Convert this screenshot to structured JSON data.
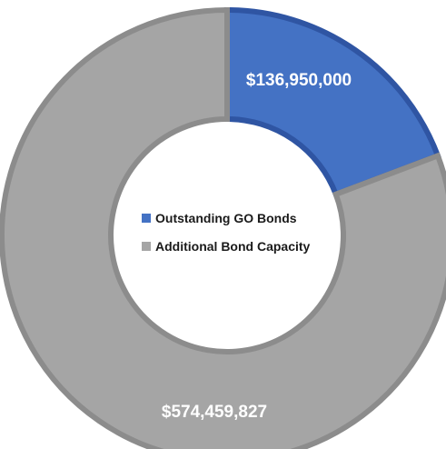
{
  "chart_data": {
    "type": "pie",
    "variant": "donut",
    "title": "",
    "categories": [
      "Outstanding GO Bonds",
      "Additional Bond Capacity"
    ],
    "values": [
      136950000,
      574459827
    ],
    "data_labels": [
      "$136,950,000",
      "$574,459,827"
    ],
    "colors": [
      "#4472C4",
      "#A5A5A5"
    ],
    "border_colors": [
      "#2F55A3",
      "#8C8C8C"
    ],
    "start_angle_deg": 0,
    "direction": "clockwise",
    "legend": {
      "placement": "center",
      "entries": [
        {
          "label": "Outstanding GO Bonds",
          "color": "#4472C4"
        },
        {
          "label": "Additional Bond Capacity",
          "color": "#A5A5A5"
        }
      ]
    }
  }
}
